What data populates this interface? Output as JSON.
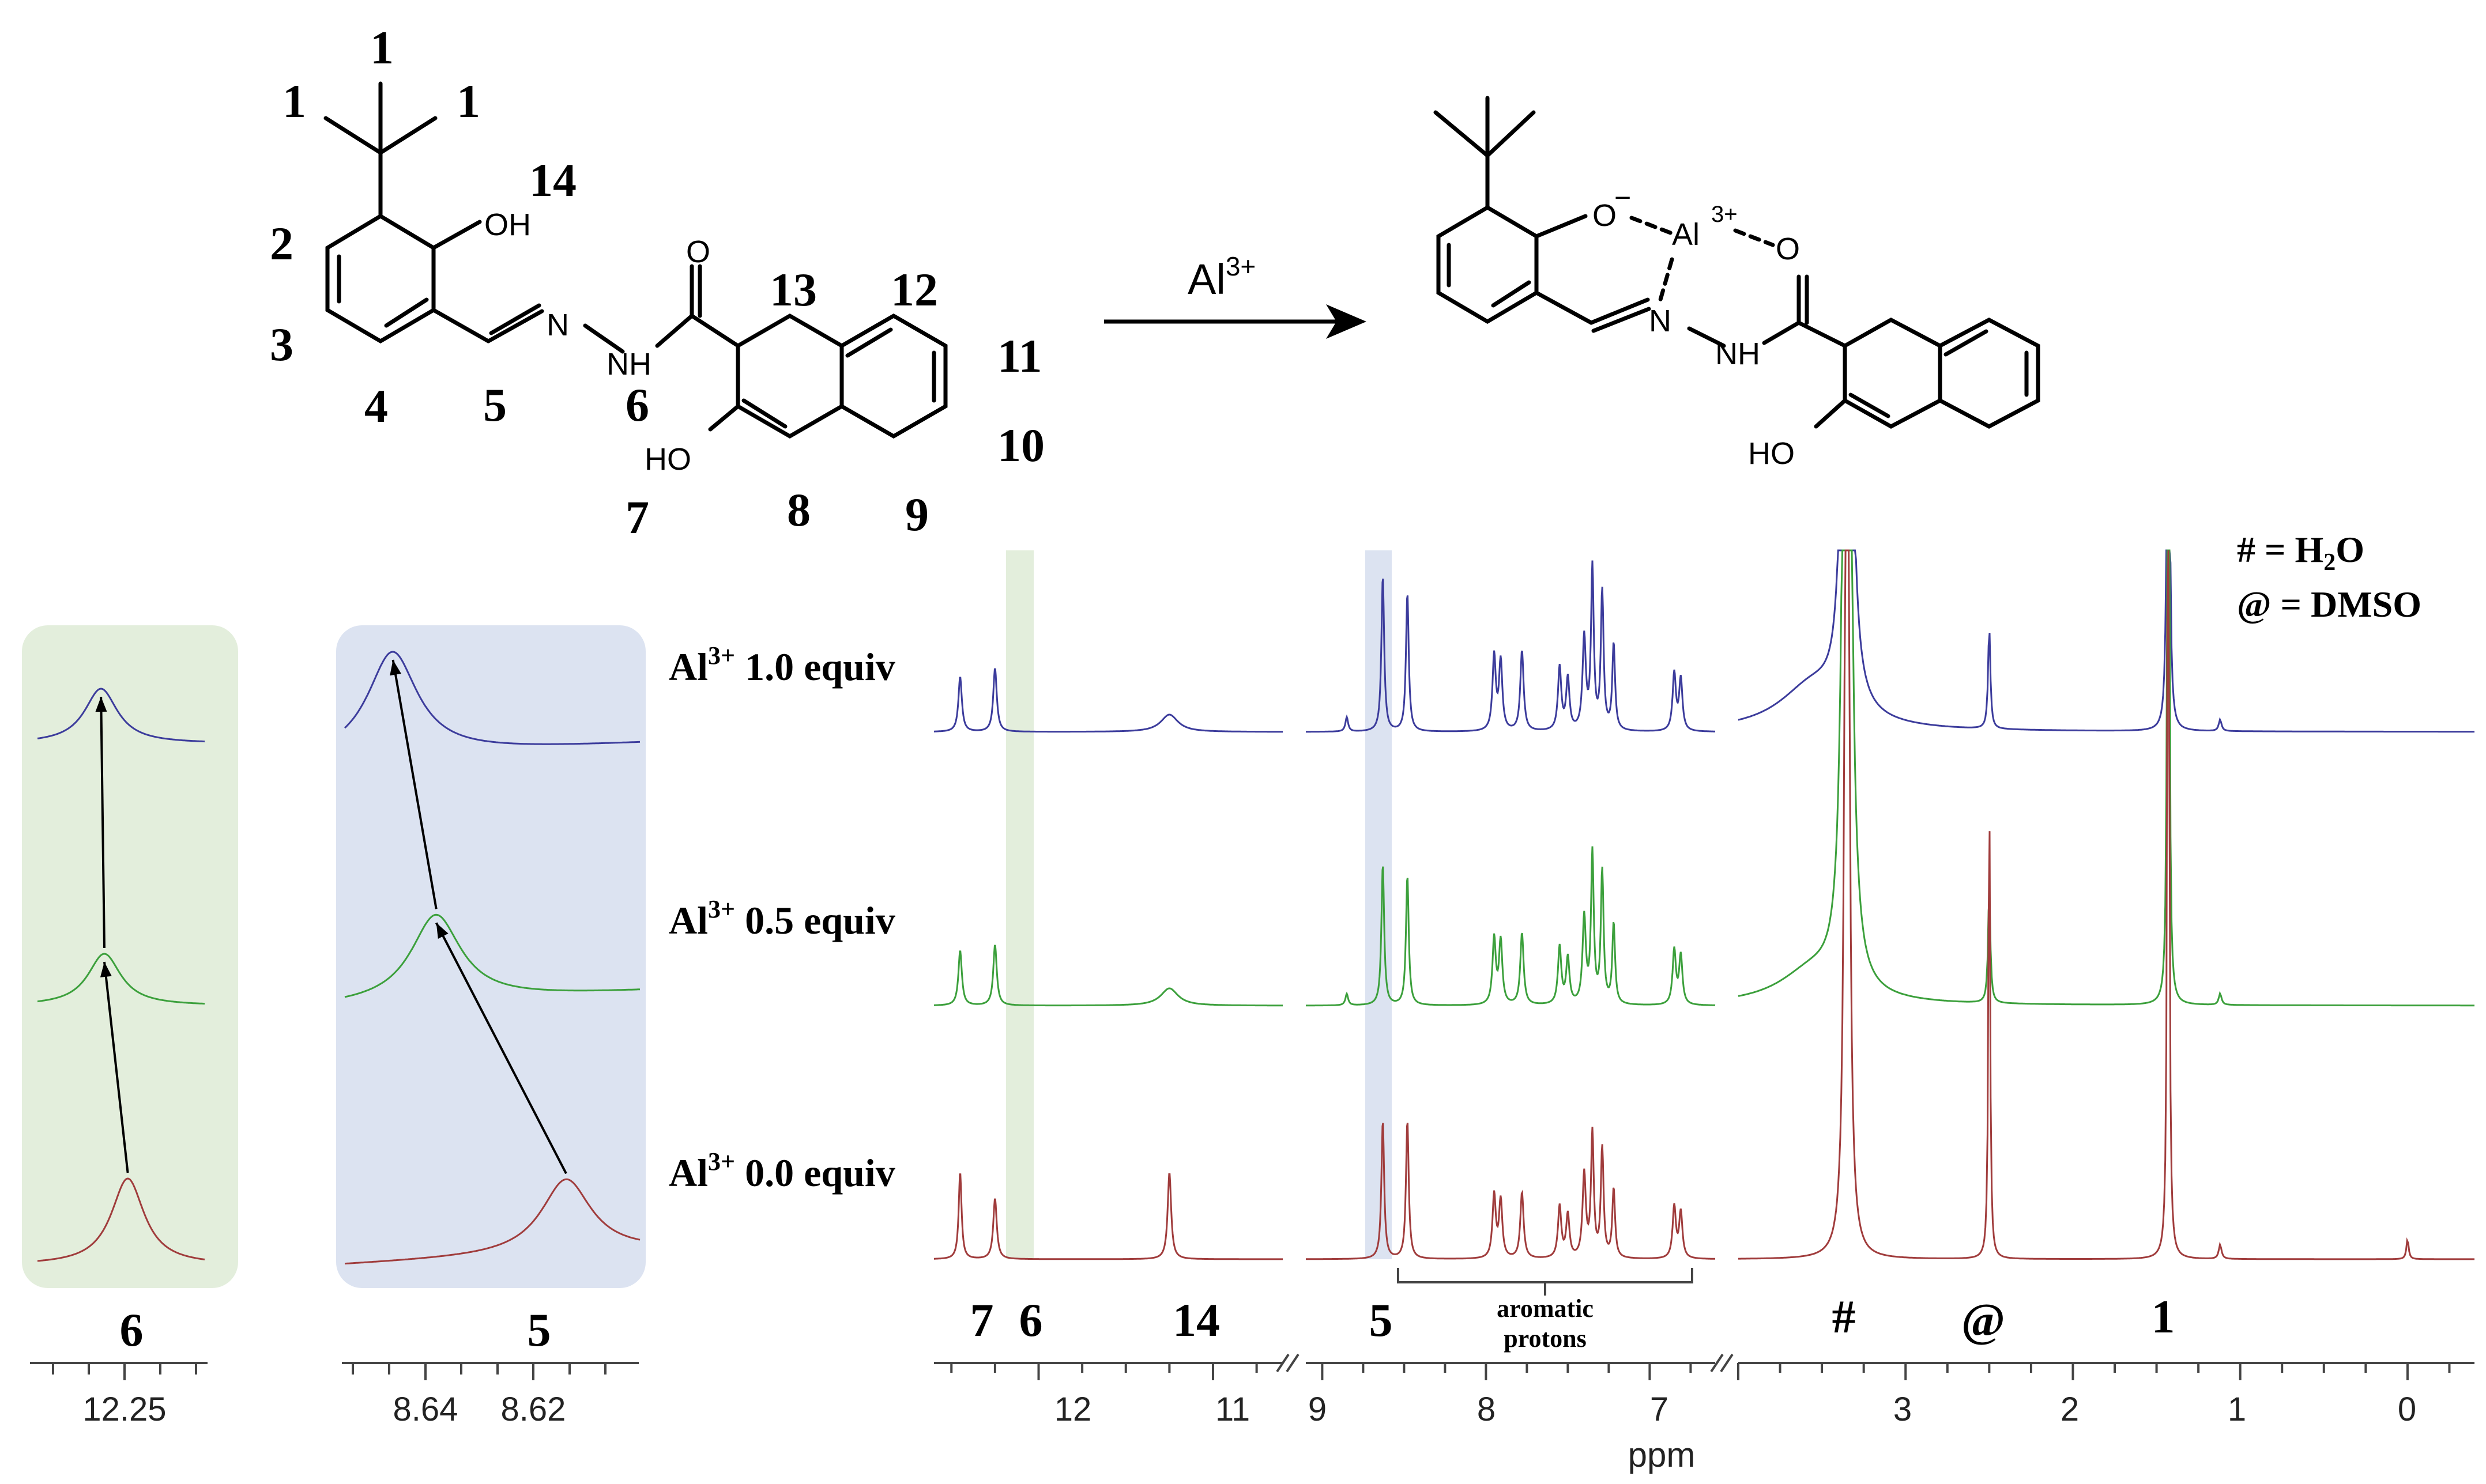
{
  "reaction": {
    "reagent": "Al",
    "reagent_charge": "3+"
  },
  "ligand": {
    "atoms": {
      "oh_phenol": "OH",
      "o_carbonyl": "O",
      "n_imine": "N",
      "nh_amide": "NH",
      "ho_naphthol": "HO"
    },
    "proton_labels": [
      "1",
      "1",
      "1",
      "2",
      "3",
      "4",
      "5",
      "6",
      "7",
      "8",
      "9",
      "10",
      "11",
      "12",
      "13",
      "14"
    ]
  },
  "complex": {
    "atoms": {
      "o_phenolate": "O",
      "minus": "−",
      "metal": "Al",
      "metal_charge": "3+",
      "o_carbonyl": "O",
      "n_imine": "N",
      "nh_amide": "NH",
      "ho_naphthol": "HO"
    }
  },
  "legend": {
    "water": "# = H",
    "water_sub": "2",
    "water_tail": "O",
    "dmso": "@ = DMSO"
  },
  "traces": [
    {
      "ion": "Al",
      "charge": "3+",
      "equiv": "1.0 equiv",
      "color": "#3c3c9c"
    },
    {
      "ion": "Al",
      "charge": "3+",
      "equiv": "0.5 equiv",
      "color": "#3ca03c"
    },
    {
      "ion": "Al",
      "charge": "3+",
      "equiv": "0.0 equiv",
      "color": "#a03c3c"
    }
  ],
  "chart_data": [
    {
      "type": "line",
      "name": "inset-6",
      "peak_label": "6",
      "xticks": [
        "12.25"
      ],
      "series_peaks_ppm": [
        12.256,
        12.255,
        12.248
      ],
      "highlight_color": "#e3eedc"
    },
    {
      "type": "line",
      "name": "inset-5",
      "peak_label": "5",
      "xticks": [
        "8.64",
        "8.62"
      ],
      "series_peaks_ppm": [
        8.6405,
        8.6355,
        8.6205
      ],
      "highlight_color": "#dce3f1"
    },
    {
      "type": "line",
      "name": "main-1H-NMR",
      "xlabel": "ppm",
      "xticks": [
        "12",
        "11",
        "9",
        "8",
        "7",
        "3",
        "2",
        "1",
        "0"
      ],
      "axis_breaks": 2,
      "peak_labels": [
        "7",
        "6",
        "14",
        "5",
        "#",
        "@",
        "1"
      ],
      "aromatic_bracket_label": [
        "aromatic",
        "protons"
      ],
      "peaks_ppm": {
        "7": 12.45,
        "6": 12.25,
        "14": 11.25,
        "5": 8.63,
        "aromatic": [
          8.48,
          7.95,
          7.78,
          7.55,
          7.35,
          7.29,
          6.85
        ],
        "#": 3.35,
        "@": 2.5,
        "1": 1.43
      }
    }
  ]
}
